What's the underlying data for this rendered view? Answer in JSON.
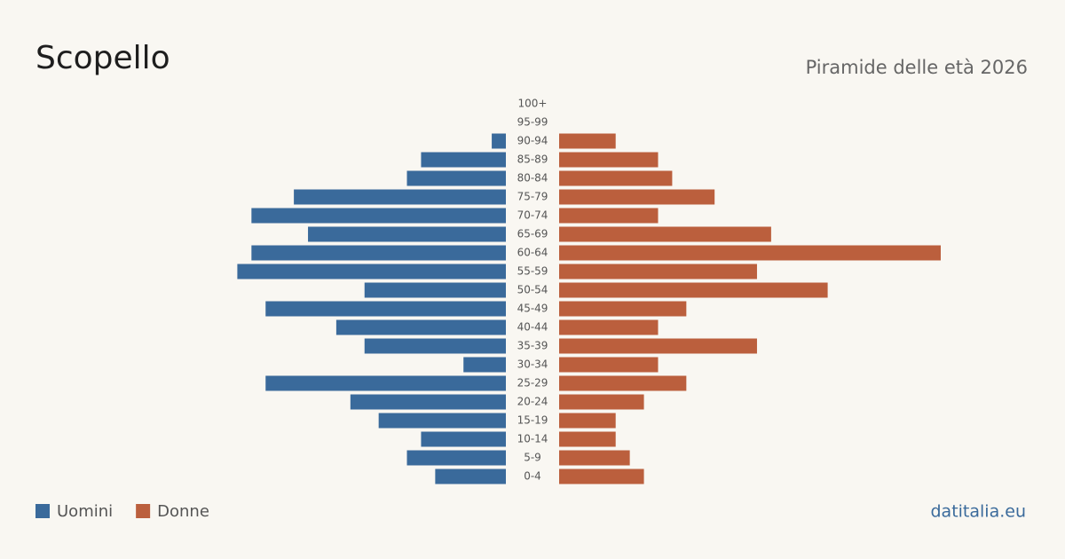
{
  "chart_data": {
    "type": "pyramid",
    "title": "Scopello",
    "subtitle": "Piramide delle età 2026",
    "source": "datitalia.eu",
    "categories": [
      "100+",
      "95-99",
      "90-94",
      "85-89",
      "80-84",
      "75-79",
      "70-74",
      "65-69",
      "60-64",
      "55-59",
      "50-54",
      "45-49",
      "40-44",
      "35-39",
      "30-34",
      "25-29",
      "20-24",
      "15-19",
      "10-14",
      "5-9",
      "0-4"
    ],
    "series": [
      {
        "name": "Uomini",
        "color": "#3a6a9b",
        "values": [
          0,
          0,
          1,
          6,
          7,
          15,
          18,
          14,
          18,
          19,
          10,
          17,
          12,
          10,
          3,
          17,
          11,
          9,
          6,
          7,
          5
        ]
      },
      {
        "name": "Donne",
        "color": "#bb5f3d",
        "values": [
          0,
          0,
          4,
          7,
          8,
          11,
          7,
          15,
          27,
          14,
          19,
          9,
          7,
          14,
          7,
          9,
          6,
          4,
          4,
          5,
          6
        ]
      }
    ]
  }
}
